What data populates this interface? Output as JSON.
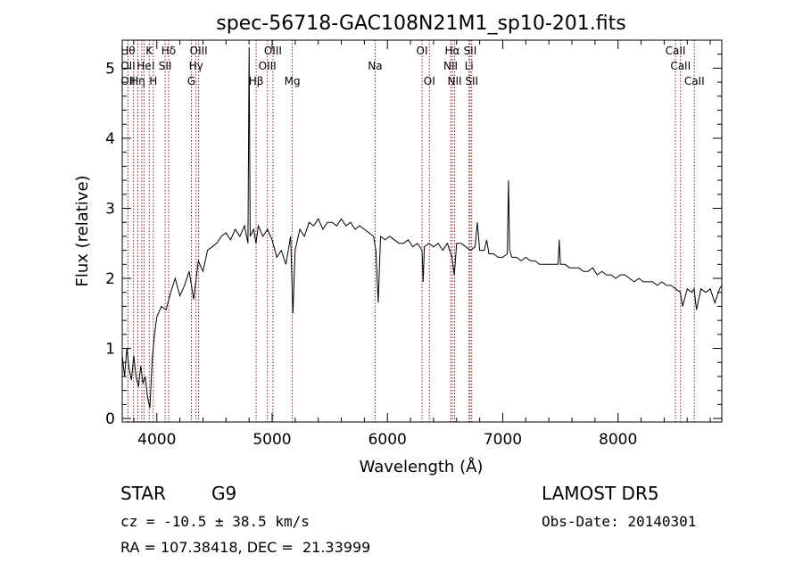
{
  "chart_data": {
    "type": "line",
    "title": "spec-56718-GAC108N21M1_sp10-201.fits",
    "xlabel": "Wavelength (Å)",
    "ylabel": "Flux (relative)",
    "xlim": [
      3700,
      8900
    ],
    "ylim": [
      -0.05,
      5.4
    ],
    "x_ticks": [
      4000,
      5000,
      6000,
      7000,
      8000
    ],
    "x_tick_labels": [
      "4000",
      "5000",
      "6000",
      "7000",
      "8000"
    ],
    "y_ticks": [
      0,
      1,
      2,
      3,
      4,
      5
    ],
    "y_tick_labels": [
      "0",
      "1",
      "2",
      "3",
      "4",
      "5"
    ],
    "grid": false,
    "series": [
      {
        "x": [
          3700,
          3720,
          3740,
          3760,
          3780,
          3800,
          3820,
          3840,
          3860,
          3880,
          3900,
          3920,
          3940,
          3960,
          3980,
          4000,
          4040,
          4080,
          4120,
          4160,
          4200,
          4240,
          4280,
          4320,
          4360,
          4400,
          4440,
          4480,
          4520,
          4560,
          4600,
          4640,
          4680,
          4720,
          4760,
          4790,
          4800,
          4810,
          4840,
          4860,
          4880,
          4920,
          4960,
          5000,
          5040,
          5080,
          5120,
          5160,
          5180,
          5200,
          5240,
          5280,
          5320,
          5360,
          5400,
          5440,
          5480,
          5520,
          5560,
          5600,
          5640,
          5680,
          5720,
          5760,
          5800,
          5840,
          5880,
          5900,
          5920,
          5940,
          5980,
          6020,
          6060,
          6100,
          6140,
          6180,
          6220,
          6260,
          6300,
          6310,
          6320,
          6360,
          6400,
          6440,
          6480,
          6520,
          6560,
          6580,
          6600,
          6640,
          6680,
          6720,
          6760,
          6780,
          6800,
          6840,
          6860,
          6880,
          6920,
          6960,
          7000,
          7040,
          7050,
          7060,
          7080,
          7120,
          7160,
          7200,
          7240,
          7280,
          7320,
          7360,
          7400,
          7440,
          7480,
          7490,
          7500,
          7540,
          7580,
          7620,
          7660,
          7700,
          7740,
          7780,
          7820,
          7860,
          7900,
          7940,
          7980,
          8020,
          8060,
          8100,
          8140,
          8180,
          8220,
          8260,
          8300,
          8340,
          8380,
          8420,
          8460,
          8500,
          8540,
          8560,
          8600,
          8640,
          8660,
          8680,
          8720,
          8760,
          8800,
          8840,
          8880,
          8900
        ],
        "y": [
          0.9,
          0.6,
          1.0,
          0.7,
          0.55,
          0.9,
          0.6,
          0.45,
          0.75,
          0.5,
          0.6,
          0.3,
          0.15,
          0.85,
          1.2,
          1.45,
          1.6,
          1.55,
          1.8,
          2.0,
          1.75,
          1.9,
          2.1,
          1.7,
          2.25,
          2.1,
          2.4,
          2.45,
          2.5,
          2.6,
          2.65,
          2.55,
          2.7,
          2.6,
          2.75,
          2.5,
          5.3,
          2.6,
          2.7,
          2.5,
          2.75,
          2.6,
          2.7,
          2.55,
          2.3,
          2.4,
          2.2,
          2.6,
          1.5,
          2.4,
          2.7,
          2.6,
          2.8,
          2.75,
          2.85,
          2.7,
          2.8,
          2.8,
          2.75,
          2.85,
          2.75,
          2.8,
          2.7,
          2.75,
          2.7,
          2.65,
          2.6,
          2.4,
          1.65,
          2.6,
          2.55,
          2.6,
          2.55,
          2.5,
          2.5,
          2.55,
          2.45,
          2.5,
          2.4,
          1.95,
          2.45,
          2.5,
          2.45,
          2.5,
          2.4,
          2.5,
          2.3,
          2.05,
          2.5,
          2.5,
          2.45,
          2.4,
          2.45,
          2.8,
          2.4,
          2.4,
          2.55,
          2.35,
          2.35,
          2.3,
          2.3,
          2.35,
          3.4,
          2.4,
          2.3,
          2.3,
          2.25,
          2.3,
          2.25,
          2.25,
          2.2,
          2.2,
          2.2,
          2.2,
          2.2,
          2.55,
          2.2,
          2.2,
          2.15,
          2.15,
          2.15,
          2.1,
          2.1,
          2.15,
          2.05,
          2.1,
          2.05,
          2.05,
          2.0,
          2.05,
          2.05,
          2.0,
          1.95,
          2.0,
          1.95,
          1.95,
          1.95,
          1.9,
          1.95,
          1.9,
          1.9,
          1.85,
          1.8,
          1.6,
          1.85,
          1.8,
          1.85,
          1.55,
          1.85,
          1.8,
          1.85,
          1.65,
          1.85,
          1.9
        ]
      }
    ],
    "lines": [
      {
        "wl": 3750,
        "labels": [
          "Hθ",
          "OII",
          "OII"
        ]
      },
      {
        "wl": 3798,
        "labels": []
      },
      {
        "wl": 3835,
        "labels": [
          "",
          "",
          "Hη"
        ]
      },
      {
        "wl": 3869,
        "labels": [
          "",
          "",
          ""
        ]
      },
      {
        "wl": 3889,
        "labels": [
          "",
          "He",
          ""
        ]
      },
      {
        "wl": 3934,
        "labels": [
          "K",
          "",
          ""
        ]
      },
      {
        "wl": 3969,
        "labels": [
          "",
          "I",
          "H"
        ]
      },
      {
        "wl": 4072,
        "labels": [
          "",
          "SII",
          ""
        ]
      },
      {
        "wl": 4102,
        "labels": [
          "Hδ",
          "",
          ""
        ]
      },
      {
        "wl": 4300,
        "labels": [
          "",
          "",
          "G"
        ]
      },
      {
        "wl": 4340,
        "labels": [
          "",
          "Hγ",
          ""
        ]
      },
      {
        "wl": 4363,
        "labels": [
          "OIII",
          "",
          ""
        ]
      },
      {
        "wl": 4861,
        "labels": [
          "",
          "",
          "Hβ"
        ]
      },
      {
        "wl": 4959,
        "labels": [
          "",
          "OIII",
          ""
        ]
      },
      {
        "wl": 5007,
        "labels": [
          "OIII",
          "",
          ""
        ]
      },
      {
        "wl": 5175,
        "labels": [
          "",
          "",
          "Mg"
        ]
      },
      {
        "wl": 5893,
        "labels": [
          "",
          "Na",
          ""
        ]
      },
      {
        "wl": 6300,
        "labels": [
          "OI",
          "",
          ""
        ]
      },
      {
        "wl": 6364,
        "labels": [
          "",
          "",
          "OI"
        ]
      },
      {
        "wl": 6548,
        "labels": [
          "",
          "NII",
          ""
        ]
      },
      {
        "wl": 6563,
        "labels": [
          "Hα",
          "",
          ""
        ]
      },
      {
        "wl": 6583,
        "labels": [
          "",
          "",
          "NII"
        ]
      },
      {
        "wl": 6708,
        "labels": [
          "",
          "Li",
          ""
        ]
      },
      {
        "wl": 6717,
        "labels": [
          "SII",
          "",
          ""
        ]
      },
      {
        "wl": 6731,
        "labels": [
          "",
          "",
          "SII"
        ]
      },
      {
        "wl": 8498,
        "labels": [
          "CaII",
          "",
          ""
        ]
      },
      {
        "wl": 8542,
        "labels": [
          "",
          "CaII",
          ""
        ]
      },
      {
        "wl": 8662,
        "labels": [
          "",
          "",
          "CaII"
        ]
      }
    ]
  },
  "info": {
    "class": "STAR",
    "subclass": "G9",
    "survey": "LAMOST DR5",
    "cz": "cz = -10.5 ± 38.5 km/s",
    "obs_date": "Obs-Date: 20140301",
    "coords": "RA = 107.38418, DEC =  21.33999"
  }
}
